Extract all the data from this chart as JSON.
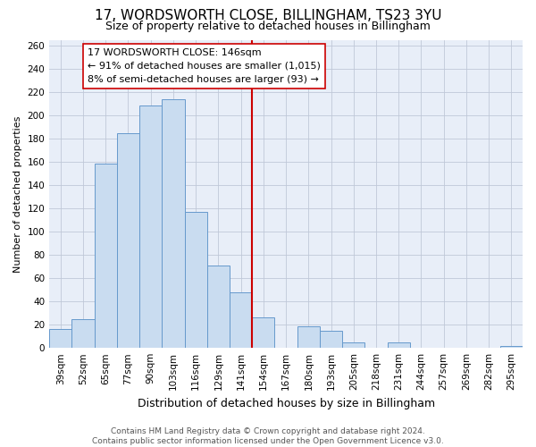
{
  "title": "17, WORDSWORTH CLOSE, BILLINGHAM, TS23 3YU",
  "subtitle": "Size of property relative to detached houses in Billingham",
  "xlabel": "Distribution of detached houses by size in Billingham",
  "ylabel": "Number of detached properties",
  "categories": [
    "39sqm",
    "52sqm",
    "65sqm",
    "77sqm",
    "90sqm",
    "103sqm",
    "116sqm",
    "129sqm",
    "141sqm",
    "154sqm",
    "167sqm",
    "180sqm",
    "193sqm",
    "205sqm",
    "218sqm",
    "231sqm",
    "244sqm",
    "257sqm",
    "269sqm",
    "282sqm",
    "295sqm"
  ],
  "values": [
    16,
    25,
    159,
    185,
    209,
    214,
    117,
    71,
    48,
    26,
    0,
    19,
    15,
    5,
    0,
    5,
    0,
    0,
    0,
    0,
    2
  ],
  "bar_color": "#c9dcf0",
  "bar_edge_color": "#6699cc",
  "background_color": "#ffffff",
  "plot_bg_color": "#e8eef8",
  "grid_color": "#c0c8d8",
  "ref_line_x": 8.5,
  "ref_line_color": "#cc0000",
  "annotation_text": "17 WORDSWORTH CLOSE: 146sqm\n← 91% of detached houses are smaller (1,015)\n8% of semi-detached houses are larger (93) →",
  "annotation_box_color": "#ffffff",
  "annotation_box_edge": "#cc0000",
  "footer_line1": "Contains HM Land Registry data © Crown copyright and database right 2024.",
  "footer_line2": "Contains public sector information licensed under the Open Government Licence v3.0.",
  "ylim": [
    0,
    265
  ],
  "yticks": [
    0,
    20,
    40,
    60,
    80,
    100,
    120,
    140,
    160,
    180,
    200,
    220,
    240,
    260
  ],
  "title_fontsize": 11,
  "subtitle_fontsize": 9,
  "xlabel_fontsize": 9,
  "ylabel_fontsize": 8,
  "tick_fontsize": 7.5,
  "annotation_fontsize": 8,
  "footer_fontsize": 6.5
}
